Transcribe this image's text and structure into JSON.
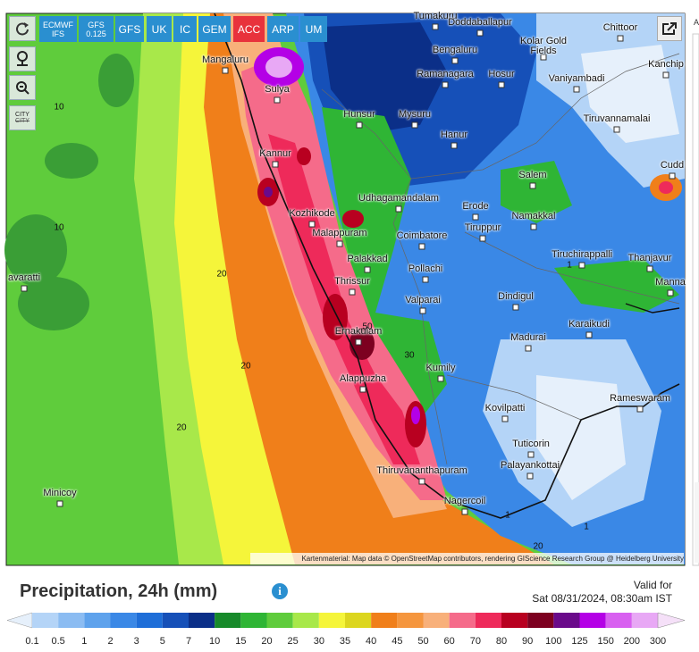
{
  "toolbar": {
    "models": [
      {
        "lines": [
          "ECMWF",
          "IFS"
        ]
      },
      {
        "lines": [
          "GFS",
          "0.125"
        ]
      },
      {
        "lines": [
          "GFS"
        ]
      },
      {
        "lines": [
          "UK"
        ]
      },
      {
        "lines": [
          "IC"
        ]
      },
      {
        "lines": [
          "GEM"
        ]
      },
      {
        "lines": [
          "ACC"
        ]
      },
      {
        "lines": [
          "ARP"
        ]
      },
      {
        "lines": [
          "UM"
        ]
      }
    ],
    "active": "ACC"
  },
  "controls": {
    "city": "CITY"
  },
  "map": {
    "places": [
      "Tumakuru",
      "Doddaballapur",
      "Chittoor",
      "Bengaluru",
      "Kolar Gold Fields",
      "Kanchip",
      "Mangaluru",
      "Ramanagara",
      "Hosur",
      "Vaniyambadi",
      "Sulya",
      "Hunsur",
      "Mysuru",
      "Tiruvannamalai",
      "Hanur",
      "Kannur",
      "Cudd",
      "Salem",
      "Udhagamandalam",
      "Erode",
      "Kozhikode",
      "Namakkal",
      "Malappuram",
      "Coimbatore",
      "Tiruppur",
      "Palakkad",
      "Tiruchirappalli",
      "Thanjavur",
      "Pollachi",
      "avaratti",
      "Thrissur",
      "Manna",
      "Valparai",
      "Dindigul",
      "Karaikudi",
      "Ernakulam",
      "Madurai",
      "Kumily",
      "Alappuzha",
      "Rameswaram",
      "Kovilpatti",
      "Tuticorin",
      "Palayankottai",
      "Thiruvananthapuram",
      "Minicoy",
      "Nagercoil"
    ],
    "contours": [
      "10",
      "10",
      "20",
      "20",
      "20",
      "50",
      "30",
      "1",
      "1",
      "1",
      "20"
    ],
    "attribution": "Kartenmaterial: Map data © OpenStreetMap contributors, rendering GIScience Research Group @ Heidelberg University",
    "side_label": "A"
  },
  "legend": {
    "title": "Precipitation, 24h (mm)",
    "valid_label": "Valid for",
    "valid_time": "Sat 08/31/2024, 08:30am IST",
    "labels": [
      0.1,
      0.5,
      1,
      2,
      3,
      5,
      7,
      10,
      15,
      20,
      25,
      30,
      35,
      40,
      45,
      50,
      60,
      70,
      80,
      90,
      100,
      125,
      150,
      200,
      300
    ],
    "colors": [
      "#e6f0fb",
      "#b4d4f7",
      "#8bbcf2",
      "#5ea2ec",
      "#3a88e6",
      "#1e6ed8",
      "#1650b8",
      "#0b2f88",
      "#178a2a",
      "#2fb535",
      "#5fcc3c",
      "#a8e84a",
      "#f5f53a",
      "#dcd61e",
      "#f07f1a",
      "#f5963e",
      "#f8b07a",
      "#f56b8a",
      "#ee2a5a",
      "#b80020",
      "#7d0020",
      "#6a0a8a",
      "#b400e6",
      "#d860f0",
      "#e8a8f5",
      "#f5e0f8",
      "#c8c8c8",
      "#aaaaaa"
    ]
  }
}
